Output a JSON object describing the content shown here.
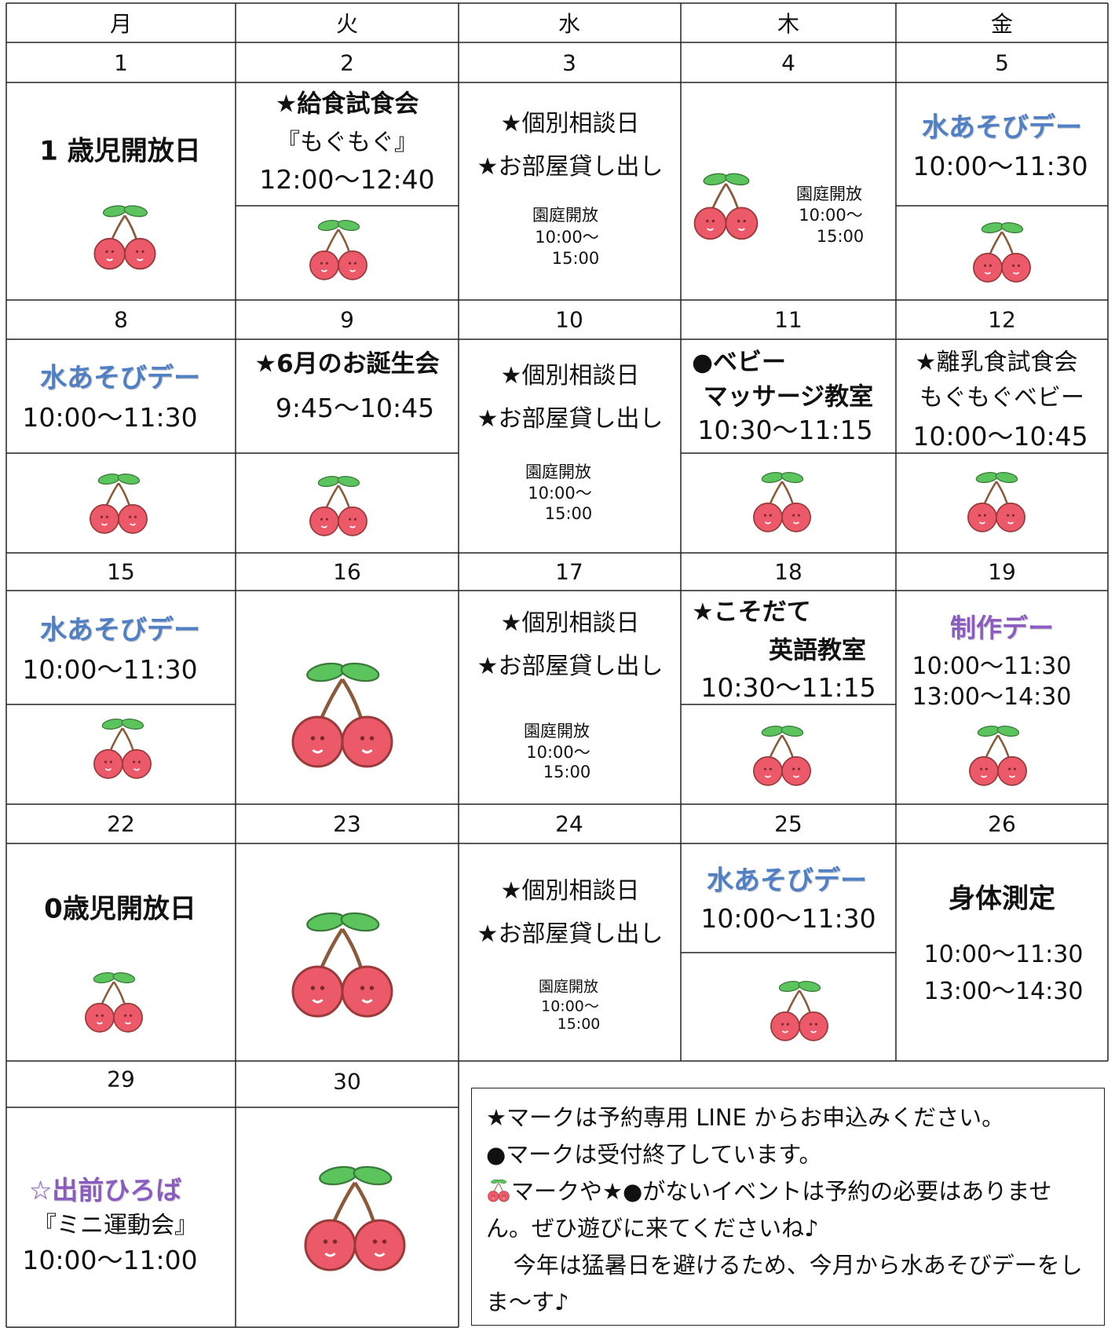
{
  "weekdays": [
    "月",
    "火",
    "水",
    "木",
    "金"
  ],
  "weeks": [
    {
      "days": [
        {
          "date": "1",
          "lines": [
            "1 歳児開放日"
          ]
        },
        {
          "date": "2",
          "lines": [
            "★給食試食会",
            "『もぐもぐ』",
            "12:00～12:40"
          ]
        },
        {
          "date": "3",
          "lines": [
            "★個別相談日",
            "★お部屋貸し出し",
            "園庭開放",
            "10:00～",
            "15:00"
          ]
        },
        {
          "date": "4",
          "lines": [
            "園庭開放",
            "10:00～",
            "15:00"
          ]
        },
        {
          "date": "5",
          "lines": [
            "水あそびデー",
            "10:00～11:30"
          ]
        }
      ]
    },
    {
      "days": [
        {
          "date": "8",
          "lines": [
            "水あそびデー",
            "10:00～11:30"
          ]
        },
        {
          "date": "9",
          "lines": [
            "★6月のお誕生会",
            "9:45～10:45"
          ]
        },
        {
          "date": "10",
          "lines": [
            "★個別相談日",
            "★お部屋貸し出し",
            "園庭開放",
            "10:00～",
            "15:00"
          ]
        },
        {
          "date": "11",
          "lines": [
            "●ベビー",
            "マッサージ教室",
            "10:30～11:15"
          ]
        },
        {
          "date": "12",
          "lines": [
            "★離乳食試食会",
            "もぐもぐベビー",
            "10:00～10:45"
          ]
        }
      ]
    },
    {
      "days": [
        {
          "date": "15",
          "lines": [
            "水あそびデー",
            "10:00～11:30"
          ]
        },
        {
          "date": "16",
          "lines": []
        },
        {
          "date": "17",
          "lines": [
            "★個別相談日",
            "★お部屋貸し出し",
            "園庭開放",
            "10:00～",
            "15:00"
          ]
        },
        {
          "date": "18",
          "lines": [
            "★こそだて",
            "英語教室",
            "10:30～11:15"
          ]
        },
        {
          "date": "19",
          "lines": [
            "制作デー",
            "10:00～11:30",
            "13:00～14:30"
          ]
        }
      ]
    },
    {
      "days": [
        {
          "date": "22",
          "lines": [
            "0歳児開放日"
          ]
        },
        {
          "date": "23",
          "lines": []
        },
        {
          "date": "24",
          "lines": [
            "★個別相談日",
            "★お部屋貸し出し",
            "園庭開放",
            "10:00～",
            "15:00"
          ]
        },
        {
          "date": "25",
          "lines": [
            "水あそびデー",
            "10:00～11:30"
          ]
        },
        {
          "date": "26",
          "lines": [
            "身体測定",
            "10:00～11:30",
            "13:00～14:30"
          ]
        }
      ]
    },
    {
      "days": [
        {
          "date": "29",
          "lines": [
            "☆出前ひろば",
            "『ミニ運動会』",
            "10:00～11:00"
          ]
        },
        {
          "date": "30",
          "lines": []
        }
      ]
    }
  ],
  "notes": [
    "★マークは予約専用 LINE からお申込みください。",
    "●マークは受付終了しています。",
    "マークや★●がないイベントは予約の必要はありません。ぜひ遊びに来てくださいね♪",
    "今年は猛暑日を避けるため、今月から水あそびデーをしま～す♪"
  ]
}
